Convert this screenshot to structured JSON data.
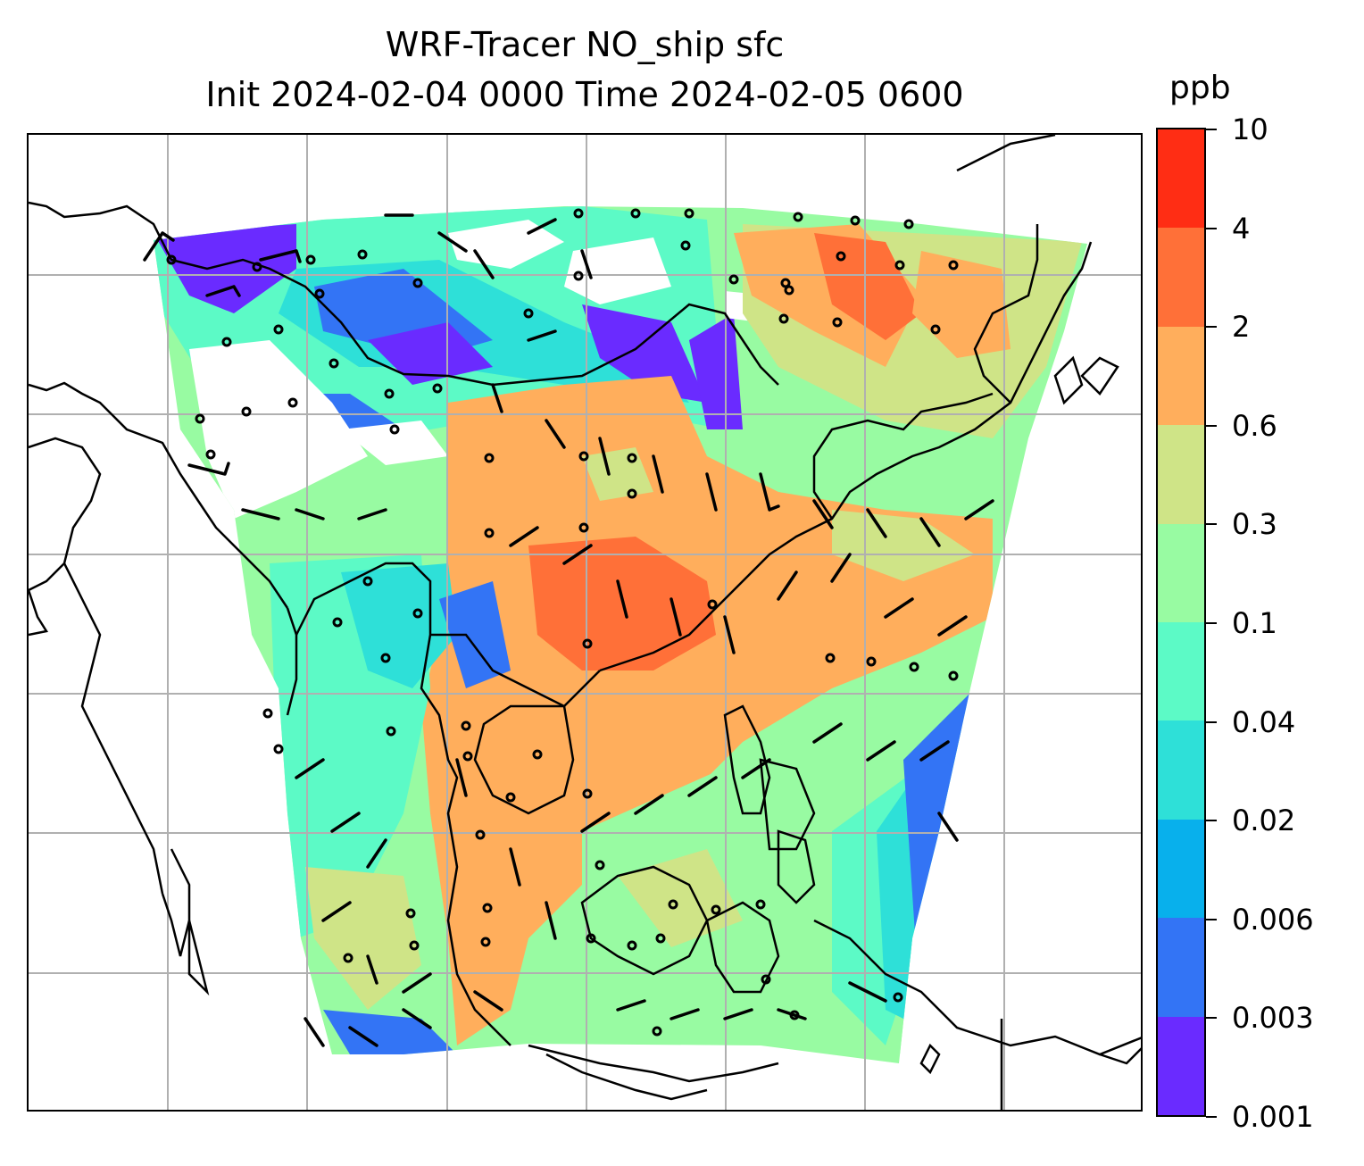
{
  "title": {
    "line1": "WRF-Tracer NO_ship sfc",
    "line2": "Init 2024-02-04 0000 Time 2024-02-05 0600"
  },
  "colorbar": {
    "unit": "ppb",
    "ticks": [
      "0.001",
      "0.003",
      "0.006",
      "0.02",
      "0.04",
      "0.1",
      "0.3",
      "0.6",
      "2",
      "4",
      "10"
    ],
    "colors": [
      "#6a2bff",
      "#3374f5",
      "#08b0ec",
      "#2ee0d8",
      "#5cfac6",
      "#98fba2",
      "#cfe487",
      "#ffae5c",
      "#ff7038",
      "#ff2d14"
    ]
  },
  "map": {
    "projection_gridlines": true,
    "field": "NO_ship surface concentration",
    "overlays": [
      "coastlines",
      "wind barbs"
    ]
  }
}
